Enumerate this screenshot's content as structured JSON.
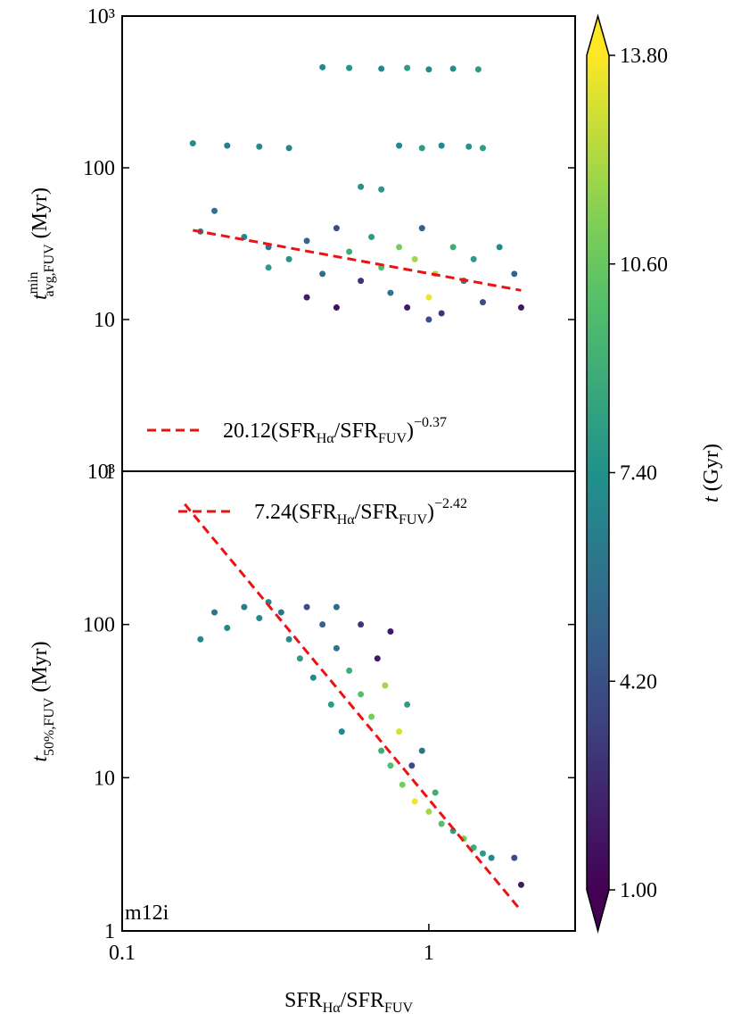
{
  "chart_data": [
    {
      "type": "scatter",
      "xlim": [
        0.1,
        3
      ],
      "ylim": [
        1,
        1000
      ],
      "log": true,
      "yticks": [
        1,
        10,
        100,
        {
          "value": 1000,
          "label": "10³"
        }
      ],
      "ylabel": [
        "t",
        "min",
        "avg,FUV",
        " (Myr)"
      ],
      "x": [
        0.45,
        0.55,
        0.7,
        0.85,
        1.0,
        1.2,
        1.45,
        0.17,
        0.22,
        0.28,
        0.35,
        0.8,
        0.95,
        1.1,
        1.35,
        1.5,
        0.6,
        0.7,
        0.2,
        0.18,
        0.25,
        0.3,
        0.35,
        0.4,
        0.45,
        0.5,
        0.55,
        0.6,
        0.65,
        0.7,
        0.75,
        0.8,
        0.85,
        0.9,
        0.95,
        1.0,
        1.05,
        1.1,
        1.2,
        1.3,
        1.4,
        1.5,
        1.7,
        1.9,
        2.0,
        0.5,
        0.4,
        0.3,
        1.0
      ],
      "y": [
        460,
        455,
        450,
        455,
        445,
        450,
        445,
        145,
        140,
        138,
        135,
        140,
        135,
        140,
        138,
        135,
        75,
        72,
        52,
        38,
        35,
        30,
        25,
        33,
        20,
        40,
        28,
        18,
        35,
        22,
        15,
        30,
        12,
        25,
        40,
        14,
        20,
        11,
        30,
        18,
        25,
        13,
        30,
        20,
        12,
        12,
        14,
        22,
        10
      ],
      "c": [
        7,
        7.5,
        6.8,
        8,
        7,
        7.2,
        8,
        7,
        6.5,
        7,
        6.8,
        7,
        8,
        7,
        7.5,
        8,
        7.5,
        7.8,
        6,
        6.5,
        7,
        6,
        7.5,
        5,
        5.5,
        4,
        9,
        3,
        8,
        10,
        6,
        11,
        2,
        12,
        5,
        13.5,
        12,
        3,
        9,
        6,
        8,
        4,
        7,
        5,
        2,
        1.5,
        2,
        8,
        4
      ],
      "fit": {
        "coef": 20.12,
        "exponent": -0.37,
        "xrange": [
          0.17,
          2.0
        ],
        "color": "#ee1111"
      },
      "legend": [
        "20.12(SFR",
        "Hα",
        "/SFR",
        "FUV",
        ")",
        "−0.37"
      ]
    },
    {
      "type": "scatter",
      "xlim": [
        0.1,
        3
      ],
      "ylim": [
        1,
        1000
      ],
      "log": true,
      "yticks": [
        1,
        10,
        100,
        {
          "value": 1000,
          "label": "10³"
        }
      ],
      "xticks": [
        0.1,
        1
      ],
      "xlabel": [
        "SFR",
        "Hα",
        "/SFR",
        "FUV"
      ],
      "ylabel": [
        "t",
        "50%,FUV",
        " (Myr)"
      ],
      "annotation": "m12i",
      "x": [
        0.18,
        0.2,
        0.22,
        0.25,
        0.28,
        0.3,
        0.33,
        0.35,
        0.38,
        0.4,
        0.42,
        0.45,
        0.48,
        0.5,
        0.52,
        0.55,
        0.6,
        0.6,
        0.65,
        0.68,
        0.7,
        0.72,
        0.75,
        0.8,
        0.82,
        0.85,
        0.88,
        0.9,
        0.95,
        1.0,
        1.05,
        1.1,
        1.2,
        1.3,
        1.4,
        1.5,
        1.6,
        1.9,
        2.0,
        0.75,
        0.5
      ],
      "y": [
        80,
        120,
        95,
        130,
        110,
        140,
        120,
        80,
        60,
        130,
        45,
        100,
        30,
        70,
        20,
        50,
        100,
        35,
        25,
        60,
        15,
        40,
        12,
        20,
        9,
        30,
        12,
        7,
        15,
        6,
        8,
        5,
        4.5,
        4,
        3.5,
        3.2,
        3,
        3,
        2,
        90,
        130
      ],
      "c": [
        7,
        6,
        7,
        6.5,
        7,
        7,
        6,
        7,
        8,
        4,
        7,
        5,
        8,
        6,
        7,
        9,
        3,
        10,
        11,
        2,
        9,
        12,
        10,
        13,
        11,
        8,
        4,
        13.5,
        6,
        12,
        9,
        10,
        8,
        11,
        9,
        8,
        7,
        4,
        2,
        2,
        5.5
      ],
      "fit": {
        "coef": 7.24,
        "exponent": -2.42,
        "xrange": [
          0.16,
          2.0
        ],
        "color": "#ee1111"
      },
      "legend": [
        "7.24(SFR",
        "Hα",
        "/SFR",
        "FUV",
        ")",
        "−2.42"
      ]
    }
  ],
  "colorbar": {
    "clim": [
      1,
      13.8
    ],
    "ticks": [
      {
        "value": 1,
        "label": "1.00"
      },
      {
        "value": 4.2,
        "label": "4.20"
      },
      {
        "value": 7.4,
        "label": "7.40"
      },
      {
        "value": 10.6,
        "label": "10.60"
      },
      {
        "value": 13.8,
        "label": "13.80"
      }
    ],
    "label": [
      "t",
      " (Gyr)"
    ]
  }
}
